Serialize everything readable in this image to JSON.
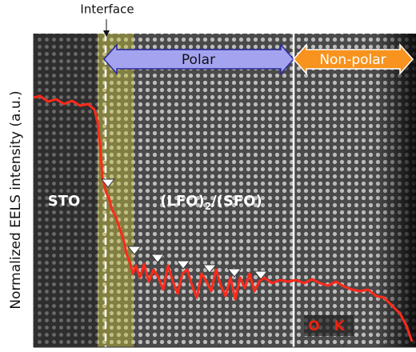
{
  "chart_data": {
    "type": "line",
    "y_label": "Normalized EELS intensity (a.u.)",
    "interface_label": "Interface",
    "polar_label": "Polar",
    "nonpolar_label": "Non-polar",
    "sto_label": "STO",
    "superlattice_label": [
      "(LFO)",
      "2",
      "/(SFO)"
    ],
    "edge_label": "O K",
    "xlim": [
      42,
      520
    ],
    "ylim": [
      0,
      390
    ],
    "series": [
      {
        "name": "O K",
        "color": "#ff2a1a",
        "x": [
          42,
          50,
          60,
          70,
          80,
          90,
          100,
          110,
          118,
          122,
          125,
          128,
          130,
          133,
          136,
          140,
          145,
          150,
          155,
          158,
          162,
          166,
          170,
          175,
          180,
          186,
          192,
          198,
          204,
          210,
          216,
          222,
          228,
          234,
          240,
          246,
          252,
          258,
          264,
          270,
          276,
          282,
          288,
          294,
          300,
          306,
          312,
          318,
          324,
          330,
          340,
          350,
          360,
          370,
          380,
          390,
          400,
          410,
          420,
          430,
          440,
          450,
          460,
          470,
          480,
          490,
          500,
          508,
          515
        ],
        "values": [
          312,
          314,
          307,
          310,
          304,
          308,
          302,
          304,
          297,
          282,
          252,
          212,
          204,
          192,
          187,
          172,
          162,
          147,
          132,
          117,
          107,
          92,
          102,
          87,
          104,
          82,
          97,
          87,
          72,
          102,
          82,
          67,
          92,
          97,
          77,
          62,
          92,
          82,
          70,
          97,
          77,
          64,
          87,
          60,
          87,
          74,
          92,
          70,
          82,
          87,
          80,
          84,
          82,
          84,
          80,
          85,
          80,
          77,
          82,
          76,
          72,
          70,
          72,
          64,
          62,
          52,
          42,
          27,
          7
        ]
      }
    ]
  }
}
